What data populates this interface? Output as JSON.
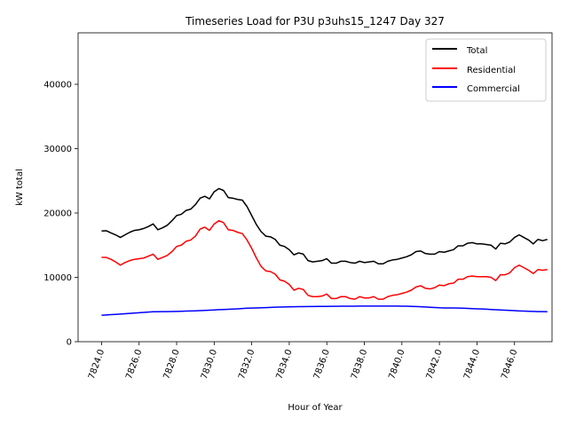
{
  "chart_data": {
    "type": "line",
    "title": "Timeseries Load for P3U p3uhs15_1247  Day 327",
    "xlabel": "Hour of Year",
    "ylabel": "kW total",
    "xlim": [
      7822.75,
      7848.0
    ],
    "ylim": [
      0,
      48000
    ],
    "xticks": [
      7824,
      7826,
      7828,
      7830,
      7832,
      7834,
      7836,
      7838,
      7840,
      7842,
      7844,
      7846
    ],
    "xtick_labels": [
      "7824.0",
      "7826.0",
      "7828.0",
      "7830.0",
      "7832.0",
      "7834.0",
      "7836.0",
      "7838.0",
      "7840.0",
      "7842.0",
      "7844.0",
      "7846.0"
    ],
    "yticks": [
      0,
      10000,
      20000,
      30000,
      40000
    ],
    "ytick_labels": [
      "0",
      "10000",
      "20000",
      "30000",
      "40000"
    ],
    "legend_position": "top-right",
    "x_start": 7824.0,
    "x_step": 0.25,
    "series": [
      {
        "name": "Total",
        "color": "#000000",
        "values": [
          17200,
          17250,
          16900,
          16600,
          16200,
          16600,
          17000,
          17300,
          17400,
          17600,
          17900,
          18300,
          17400,
          17700,
          18100,
          18800,
          19600,
          19800,
          20400,
          20600,
          21300,
          22300,
          22600,
          22200,
          23300,
          23800,
          23500,
          22400,
          22300,
          22100,
          22000,
          21000,
          19600,
          18200,
          17100,
          16400,
          16300,
          15900,
          15000,
          14800,
          14300,
          13500,
          13800,
          13600,
          12600,
          12400,
          12500,
          12600,
          12900,
          12200,
          12200,
          12500,
          12500,
          12300,
          12200,
          12500,
          12300,
          12400,
          12500,
          12100,
          12100,
          12500,
          12700,
          12800,
          13000,
          13200,
          13500,
          14000,
          14100,
          13700,
          13600,
          13600,
          14000,
          13900,
          14100,
          14300,
          14900,
          14900,
          15300,
          15400,
          15200,
          15200,
          15100,
          15000,
          14400,
          15300,
          15200,
          15500,
          16200,
          16600,
          16200,
          15800,
          15200,
          15900,
          15700,
          15900
        ]
      },
      {
        "name": "Residential",
        "color": "#ff0000",
        "values": [
          13100,
          13100,
          12800,
          12400,
          11900,
          12300,
          12600,
          12800,
          12900,
          13000,
          13300,
          13600,
          12800,
          13100,
          13400,
          14000,
          14800,
          15000,
          15600,
          15800,
          16400,
          17500,
          17800,
          17300,
          18300,
          18800,
          18500,
          17400,
          17300,
          17000,
          16800,
          15800,
          14500,
          13000,
          11700,
          11000,
          10900,
          10500,
          9600,
          9400,
          8900,
          8000,
          8300,
          8100,
          7200,
          7000,
          7000,
          7100,
          7400,
          6700,
          6700,
          7000,
          7000,
          6700,
          6600,
          7000,
          6800,
          6800,
          7000,
          6600,
          6600,
          7000,
          7200,
          7300,
          7500,
          7700,
          8000,
          8500,
          8700,
          8300,
          8200,
          8400,
          8800,
          8700,
          9000,
          9100,
          9700,
          9700,
          10100,
          10200,
          10100,
          10100,
          10100,
          10000,
          9500,
          10400,
          10400,
          10700,
          11500,
          11900,
          11500,
          11100,
          10600,
          11200,
          11100,
          11200
        ]
      },
      {
        "name": "Commercial",
        "color": "#0000ff",
        "values": [
          4100,
          4150,
          4200,
          4250,
          4300,
          4350,
          4400,
          4450,
          4500,
          4550,
          4600,
          4650,
          4650,
          4670,
          4680,
          4690,
          4700,
          4720,
          4750,
          4780,
          4800,
          4830,
          4860,
          4900,
          4940,
          4980,
          5000,
          5030,
          5060,
          5100,
          5150,
          5200,
          5230,
          5250,
          5280,
          5300,
          5330,
          5360,
          5380,
          5400,
          5420,
          5430,
          5440,
          5450,
          5460,
          5470,
          5480,
          5490,
          5490,
          5500,
          5500,
          5510,
          5510,
          5520,
          5520,
          5530,
          5530,
          5540,
          5540,
          5540,
          5540,
          5540,
          5540,
          5530,
          5520,
          5510,
          5490,
          5460,
          5430,
          5390,
          5350,
          5310,
          5270,
          5250,
          5250,
          5250,
          5230,
          5200,
          5170,
          5140,
          5110,
          5080,
          5050,
          5000,
          4960,
          4930,
          4900,
          4860,
          4820,
          4780,
          4750,
          4720,
          4700,
          4680,
          4670,
          4660
        ]
      }
    ]
  }
}
